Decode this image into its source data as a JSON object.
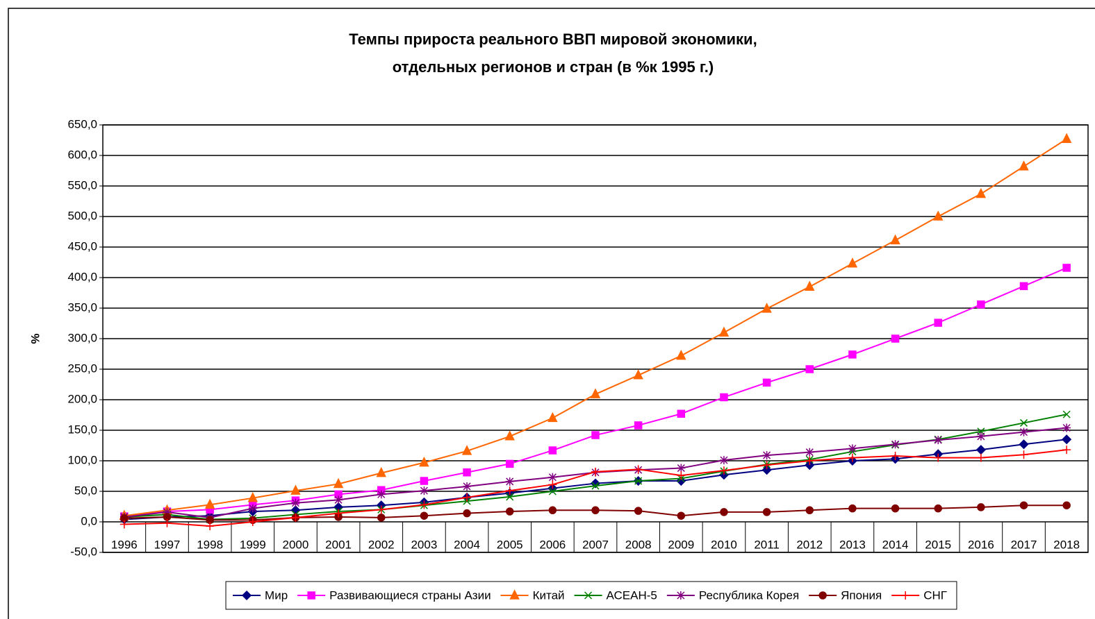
{
  "chart_data": {
    "type": "line",
    "title": [
      "Темпы прироста реального ВВП мировой экономики,",
      "отдельных регионов и стран (в %к 1995 г.)"
    ],
    "y_label": "%",
    "categories": [
      "1996",
      "1997",
      "1998",
      "1999",
      "2000",
      "2001",
      "2002",
      "2003",
      "2004",
      "2005",
      "2006",
      "2007",
      "2008",
      "2009",
      "2010",
      "2011",
      "2012",
      "2013",
      "2014",
      "2015",
      "2016",
      "2017",
      "2018"
    ],
    "ylim": [
      -50,
      650
    ],
    "yticks": [
      {
        "value": -50,
        "label": "-50,0"
      },
      {
        "value": 0,
        "label": "0,0"
      },
      {
        "value": 50,
        "label": "50,0"
      },
      {
        "value": 100,
        "label": "100,0"
      },
      {
        "value": 150,
        "label": "150,0"
      },
      {
        "value": 200,
        "label": "200,0"
      },
      {
        "value": 250,
        "label": "250,0"
      },
      {
        "value": 300,
        "label": "300,0"
      },
      {
        "value": 350,
        "label": "350,0"
      },
      {
        "value": 400,
        "label": "400,0"
      },
      {
        "value": 450,
        "label": "450,0"
      },
      {
        "value": 500,
        "label": "500,0"
      },
      {
        "value": 550,
        "label": "550,0"
      },
      {
        "value": 600,
        "label": "600,0"
      },
      {
        "value": 650,
        "label": "650,0"
      }
    ],
    "grid": true,
    "legend": "bottom",
    "series": [
      {
        "name": "Мир",
        "color": "#000080",
        "marker": "diamond",
        "values": [
          4,
          8,
          10,
          17,
          19,
          24,
          27,
          32,
          40,
          47,
          55,
          63,
          67,
          67,
          77,
          85,
          93,
          100,
          103,
          111,
          118,
          127,
          135
        ]
      },
      {
        "name": "Развивающиеся страны Азии",
        "color": "#ff00ff",
        "marker": "square",
        "values": [
          9,
          17,
          20,
          28,
          35,
          45,
          52,
          67,
          81,
          95,
          117,
          142,
          158,
          177,
          204,
          228,
          250,
          274,
          300,
          326,
          356,
          386,
          416
        ]
      },
      {
        "name": "Китай",
        "color": "#ff6600",
        "marker": "triangle",
        "values": [
          10,
          19,
          28,
          39,
          51,
          62,
          80,
          97,
          116,
          140,
          170,
          209,
          240,
          272,
          310,
          349,
          385,
          423,
          461,
          500,
          537,
          582,
          627
        ]
      },
      {
        "name": "АСЕАН-5",
        "color": "#008000",
        "marker": "x",
        "values": [
          8,
          12,
          4,
          6,
          12,
          17,
          20,
          27,
          34,
          41,
          50,
          59,
          67,
          71,
          83,
          94,
          102,
          115,
          126,
          135,
          148,
          162,
          176
        ]
      },
      {
        "name": "Республика Корея",
        "color": "#800080",
        "marker": "star",
        "values": [
          8,
          16,
          7,
          22,
          31,
          36,
          45,
          51,
          58,
          66,
          73,
          81,
          85,
          88,
          101,
          109,
          114,
          120,
          127,
          134,
          140,
          147,
          154
        ]
      },
      {
        "name": "Япония",
        "color": "#800000",
        "marker": "circle",
        "values": [
          6,
          8,
          3,
          3,
          7,
          8,
          7,
          10,
          14,
          17,
          19,
          19,
          18,
          10,
          16,
          16,
          19,
          22,
          22,
          22,
          24,
          27,
          27
        ]
      },
      {
        "name": "СНГ",
        "color": "#ff0000",
        "marker": "plus",
        "values": [
          -4,
          -2,
          -7,
          0,
          7,
          14,
          20,
          28,
          40,
          51,
          61,
          82,
          86,
          76,
          84,
          93,
          100,
          105,
          108,
          105,
          105,
          110,
          118
        ]
      }
    ]
  }
}
